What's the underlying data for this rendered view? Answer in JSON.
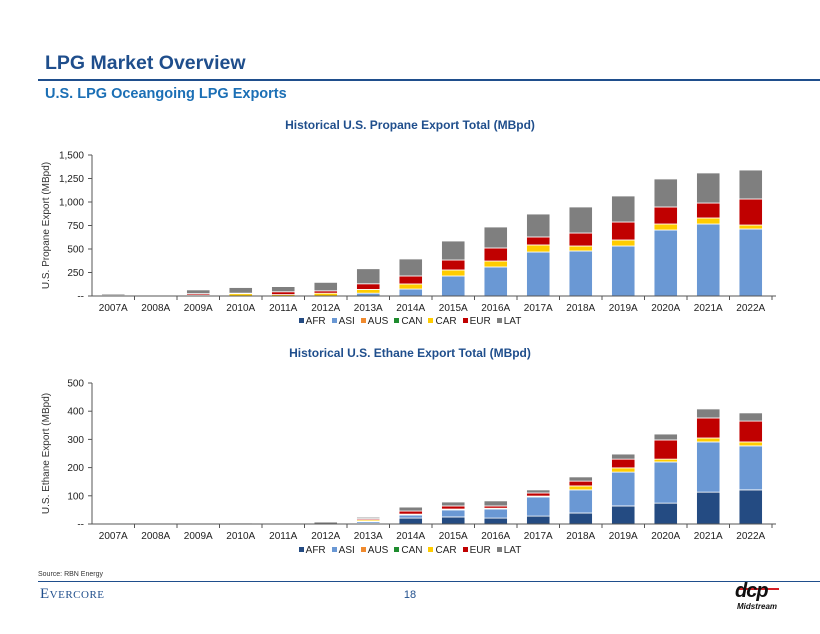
{
  "header": {
    "title": "LPG Market Overview",
    "subtitle": "U.S. LPG Oceangoing LPG Exports"
  },
  "series_colors": {
    "AFR": "#244B82",
    "ASI": "#6A98D4",
    "AUS": "#F08A2E",
    "CAN": "#1E8C2E",
    "CAR": "#FFCC00",
    "EUR": "#C00000",
    "LAT": "#7F7F7F"
  },
  "legend": [
    {
      "key": "AFR",
      "label": "AFR"
    },
    {
      "key": "ASI",
      "label": "ASI"
    },
    {
      "key": "AUS",
      "label": "AUS"
    },
    {
      "key": "CAN",
      "label": "CAN"
    },
    {
      "key": "CAR",
      "label": "CAR"
    },
    {
      "key": "EUR",
      "label": "EUR"
    },
    {
      "key": "LAT",
      "label": "LAT"
    }
  ],
  "chart_data": [
    {
      "type": "bar",
      "stacked": true,
      "title": "Historical U.S. Propane Export Total (MBpd)",
      "xlabel": "",
      "ylabel": "U.S. Propane Export (MBpd)",
      "ylim": [
        0,
        1500
      ],
      "yticks": [
        0,
        250,
        500,
        750,
        1000,
        1250,
        1500
      ],
      "ytick_labels": [
        "--",
        "250",
        "500",
        "750",
        "1,000",
        "1,250",
        "1,500"
      ],
      "grid": false,
      "legend_position": "bottom",
      "categories": [
        "2007A",
        "2008A",
        "2009A",
        "2010A",
        "2011A",
        "2012A",
        "2013A",
        "2014A",
        "2015A",
        "2016A",
        "2017A",
        "2018A",
        "2019A",
        "2020A",
        "2021A",
        "2022A"
      ],
      "series": [
        {
          "name": "AFR",
          "values": [
            0,
            0,
            0,
            0,
            0,
            0,
            0,
            0,
            0,
            0,
            0,
            0,
            0,
            0,
            0,
            0
          ]
        },
        {
          "name": "ASI",
          "values": [
            0,
            0,
            0,
            0,
            0,
            0,
            30,
            74,
            213,
            309,
            468,
            479,
            532,
            702,
            766,
            713
          ]
        },
        {
          "name": "AUS",
          "values": [
            0,
            0,
            0,
            0,
            0,
            0,
            0,
            0,
            0,
            0,
            0,
            0,
            0,
            0,
            0,
            0
          ]
        },
        {
          "name": "CAN",
          "values": [
            0,
            0,
            0,
            0,
            0,
            0,
            0,
            0,
            0,
            0,
            0,
            0,
            0,
            0,
            0,
            0
          ]
        },
        {
          "name": "CAR",
          "values": [
            5,
            2,
            10,
            25,
            15,
            30,
            40,
            54,
            64,
            63,
            75,
            53,
            64,
            64,
            64,
            42
          ]
        },
        {
          "name": "EUR",
          "values": [
            0,
            0,
            15,
            5,
            30,
            25,
            60,
            85,
            106,
            139,
            85,
            138,
            191,
            181,
            159,
            277
          ]
        },
        {
          "name": "LAT",
          "values": [
            15,
            5,
            40,
            60,
            55,
            90,
            160,
            181,
            202,
            223,
            244,
            277,
            277,
            298,
            320,
            308
          ]
        }
      ]
    },
    {
      "type": "bar",
      "stacked": true,
      "title": "Historical U.S. Ethane Export Total (MBpd)",
      "xlabel": "",
      "ylabel": "U.S. Ethane Export (MBpd)",
      "ylim": [
        0,
        500
      ],
      "yticks": [
        0,
        100,
        200,
        300,
        400,
        500
      ],
      "ytick_labels": [
        "--",
        "100",
        "200",
        "300",
        "400",
        "500"
      ],
      "grid": false,
      "legend_position": "bottom",
      "categories": [
        "2007A",
        "2008A",
        "2009A",
        "2010A",
        "2011A",
        "2012A",
        "2013A",
        "2014A",
        "2015A",
        "2016A",
        "2017A",
        "2018A",
        "2019A",
        "2020A",
        "2021A",
        "2022A"
      ],
      "series": [
        {
          "name": "AFR",
          "values": [
            2,
            3,
            0,
            0,
            0,
            0,
            2,
            21,
            25,
            21,
            28,
            39,
            64,
            74,
            113,
            121
          ]
        },
        {
          "name": "ASI",
          "values": [
            0,
            2,
            0,
            0,
            0,
            0,
            6,
            11,
            25,
            32,
            68,
            82,
            120,
            146,
            178,
            156
          ]
        },
        {
          "name": "AUS",
          "values": [
            0,
            0,
            0,
            0,
            0,
            0,
            2,
            0,
            0,
            0,
            0,
            0,
            0,
            0,
            0,
            0
          ]
        },
        {
          "name": "CAN",
          "values": [
            0,
            0,
            0,
            0,
            0,
            0,
            0,
            0,
            0,
            0,
            0,
            0,
            0,
            0,
            0,
            0
          ]
        },
        {
          "name": "CAR",
          "values": [
            0,
            0,
            0,
            1,
            0,
            0,
            5,
            3,
            3,
            3,
            3,
            14,
            15,
            10,
            14,
            14
          ]
        },
        {
          "name": "EUR",
          "values": [
            0,
            0,
            0,
            0,
            1,
            0,
            4,
            11,
            11,
            8,
            11,
            17,
            31,
            68,
            71,
            74
          ]
        },
        {
          "name": "LAT",
          "values": [
            0,
            0,
            0,
            3,
            0,
            7,
            5,
            14,
            14,
            18,
            11,
            15,
            18,
            21,
            32,
            29
          ]
        }
      ]
    }
  ],
  "footer": {
    "source": "Source: RBN Energy",
    "brand_left_first": "E",
    "brand_left_rest": "VERCORE",
    "page_number": "18",
    "brand_right_main": "dcp",
    "brand_right_sub": "Midstream"
  }
}
